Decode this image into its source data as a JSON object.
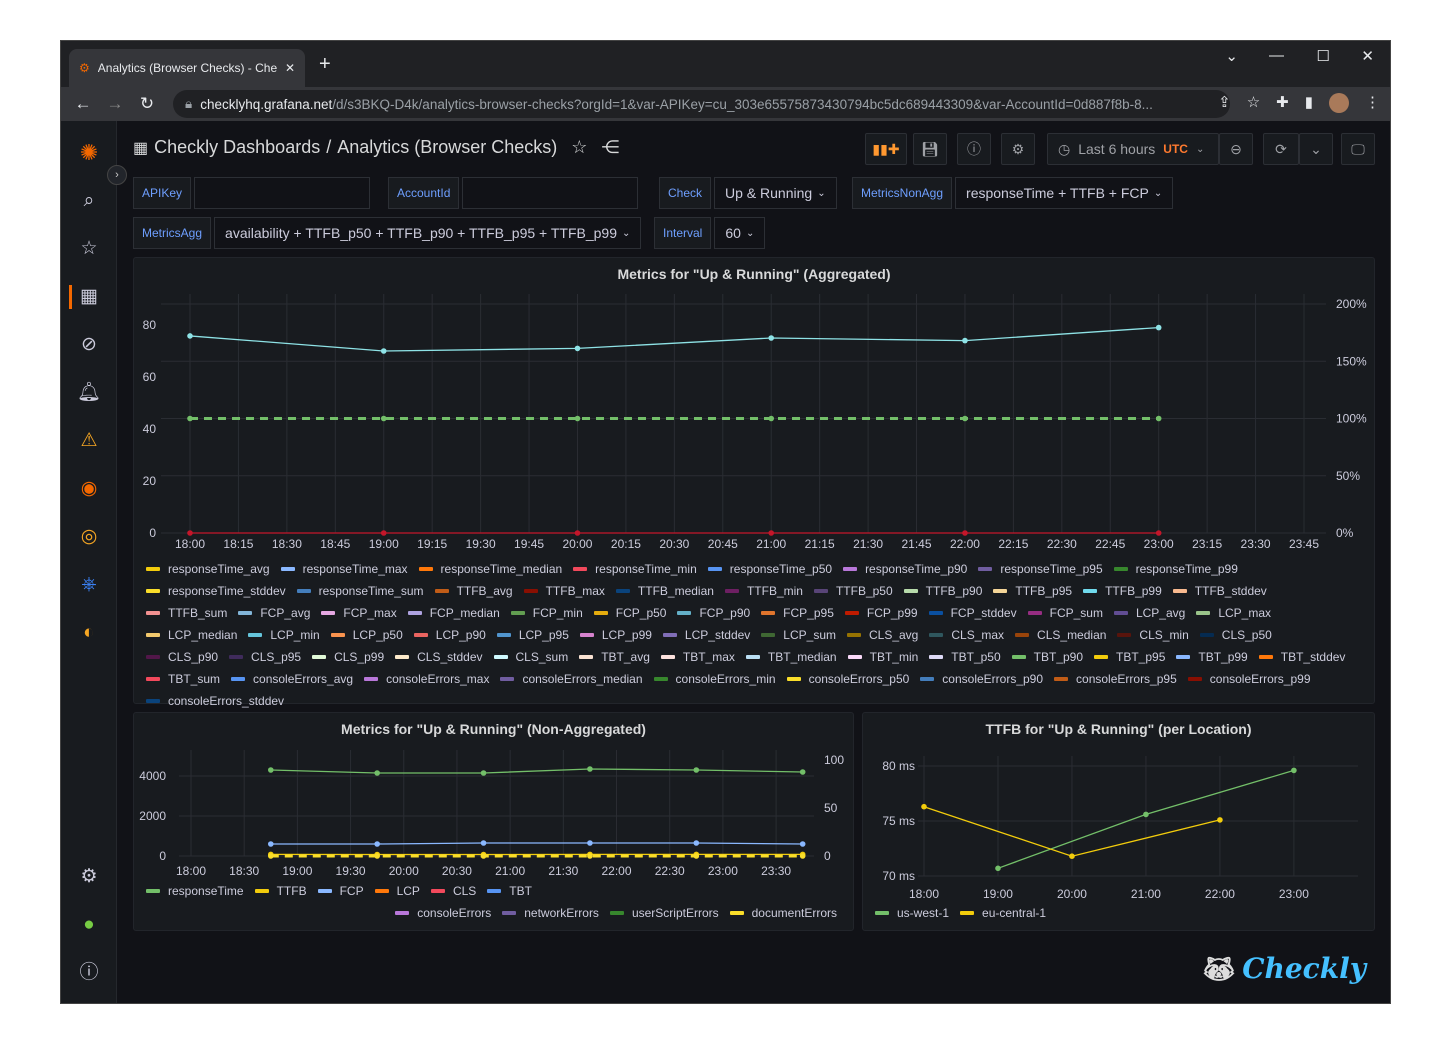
{
  "browser": {
    "tab_title": "Analytics (Browser Checks) - Checkly",
    "url_host": "checklyhq.grafana.net",
    "url_path": "/d/s3BKQ-D4k/analytics-browser-checks?orgId=1&var-APIKey=cu_303e65575873430794bc5dc689443309&var-AccountId=0d887f8b-8..."
  },
  "header": {
    "folder": "Checkly Dashboards",
    "separator": "/",
    "title": "Analytics (Browser Checks)",
    "time_range": "Last 6 hours",
    "timezone": "UTC"
  },
  "variables": [
    {
      "label": "APIKey",
      "value": ""
    },
    {
      "label": "AccountId",
      "value": ""
    },
    {
      "label": "Check",
      "value": "Up & Running"
    },
    {
      "label": "MetricsNonAgg",
      "value": "responseTime + TTFB + FCP"
    },
    {
      "label": "MetricsAgg",
      "value": "availability + TTFB_p50 + TTFB_p90 + TTFB_p95 + TTFB_p99"
    },
    {
      "label": "Interval",
      "value": "60"
    }
  ],
  "colors": {
    "accent": "#6e9fff",
    "utc": "#ff7a2f",
    "bg": "#111217",
    "panel": "#181b1f"
  },
  "panels": {
    "aggregated": {
      "title": "Metrics for \"Up & Running\" (Aggregated)"
    },
    "non_aggregated": {
      "title": "Metrics for \"Up & Running\" (Non-Aggregated)"
    },
    "ttfb_location": {
      "title": "TTFB for \"Up & Running\" (per Location)"
    }
  },
  "chart_data": [
    {
      "type": "line",
      "xlabels": [
        "18:00",
        "18:15",
        "18:30",
        "18:45",
        "19:00",
        "19:15",
        "19:30",
        "19:45",
        "20:00",
        "20:15",
        "20:30",
        "20:45",
        "21:00",
        "21:15",
        "21:30",
        "21:45",
        "22:00",
        "22:15",
        "22:30",
        "22:45",
        "23:00",
        "23:15",
        "23:30",
        "23:45"
      ],
      "yticks_left": [
        "0",
        "20",
        "40",
        "60",
        "80"
      ],
      "yticks_right": [
        "0%",
        "50%",
        "100%",
        "150%",
        "200%"
      ],
      "ylim_left": [
        0,
        80
      ],
      "ylim_right": [
        0,
        200
      ],
      "grid": true,
      "legend": "bottom",
      "series": [
        {
          "color": "#8ee3e6",
          "axis": "left",
          "x": [
            "18:00",
            "19:00",
            "20:00",
            "21:00",
            "22:00",
            "23:00"
          ],
          "values": [
            75.8,
            70,
            71,
            75,
            74,
            79
          ]
        },
        {
          "color": "#73bf69",
          "axis": "right",
          "dashed": true,
          "x": [
            "18:00",
            "19:00",
            "20:00",
            "21:00",
            "22:00",
            "23:00"
          ],
          "values": [
            100,
            100,
            100,
            100,
            100,
            100
          ]
        },
        {
          "color": "#c4162a",
          "axis": "left",
          "x": [
            "18:00",
            "19:00",
            "20:00",
            "21:00",
            "22:00",
            "23:00"
          ],
          "values": [
            0,
            0,
            0,
            0,
            0,
            0
          ]
        }
      ],
      "legend_items": [
        [
          "responseTime_avg",
          "#F2CC0C"
        ],
        [
          "responseTime_max",
          "#8AB8FF"
        ],
        [
          "responseTime_median",
          "#FF780A"
        ],
        [
          "responseTime_min",
          "#F2495C"
        ],
        [
          "responseTime_p50",
          "#5794F2"
        ],
        [
          "responseTime_p90",
          "#B877D9"
        ],
        [
          "responseTime_p95",
          "#705DA0"
        ],
        [
          "responseTime_p99",
          "#37872D"
        ],
        [
          "responseTime_stddev",
          "#FADE2A"
        ],
        [
          "responseTime_sum",
          "#447EBC"
        ],
        [
          "TTFB_avg",
          "#C15C17"
        ],
        [
          "TTFB_max",
          "#890F02"
        ],
        [
          "TTFB_median",
          "#0A437C"
        ],
        [
          "TTFB_min",
          "#6D1F62"
        ],
        [
          "TTFB_p50",
          "#584477"
        ],
        [
          "TTFB_p90",
          "#B7DBAB"
        ],
        [
          "TTFB_p95",
          "#F4D598"
        ],
        [
          "TTFB_p99",
          "#70DBED"
        ],
        [
          "TTFB_stddev",
          "#F9BA8F"
        ],
        [
          "TTFB_sum",
          "#F29191"
        ],
        [
          "FCP_avg",
          "#82B5D8"
        ],
        [
          "FCP_max",
          "#E5A8E2"
        ],
        [
          "FCP_median",
          "#AEA2E0"
        ],
        [
          "FCP_min",
          "#629E51"
        ],
        [
          "FCP_p50",
          "#E5AC0E"
        ],
        [
          "FCP_p90",
          "#64B0C8"
        ],
        [
          "FCP_p95",
          "#E0752D"
        ],
        [
          "FCP_p99",
          "#BF1B00"
        ],
        [
          "FCP_stddev",
          "#0A50A1"
        ],
        [
          "FCP_sum",
          "#962D82"
        ],
        [
          "LCP_avg",
          "#614D93"
        ],
        [
          "LCP_max",
          "#9AC48A"
        ],
        [
          "LCP_median",
          "#F2C96D"
        ],
        [
          "LCP_min",
          "#65C5DB"
        ],
        [
          "LCP_p50",
          "#F9934E"
        ],
        [
          "LCP_p90",
          "#EA6460"
        ],
        [
          "LCP_p95",
          "#5195CE"
        ],
        [
          "LCP_p99",
          "#D683CE"
        ],
        [
          "LCP_stddev",
          "#806EB7"
        ],
        [
          "LCP_sum",
          "#3F6833"
        ],
        [
          "CLS_avg",
          "#967302"
        ],
        [
          "CLS_max",
          "#2F575E"
        ],
        [
          "CLS_median",
          "#99440A"
        ],
        [
          "CLS_min",
          "#58140C"
        ],
        [
          "CLS_p50",
          "#052B51"
        ],
        [
          "CLS_p90",
          "#511749"
        ],
        [
          "CLS_p95",
          "#3F2B5B"
        ],
        [
          "CLS_p99",
          "#E0F9D7"
        ],
        [
          "CLS_stddev",
          "#FCEACA"
        ],
        [
          "CLS_sum",
          "#CFFAFF"
        ],
        [
          "TBT_avg",
          "#F9E2D2"
        ],
        [
          "TBT_max",
          "#FCE2DE"
        ],
        [
          "TBT_median",
          "#BADFF4"
        ],
        [
          "TBT_min",
          "#F9D9F9"
        ],
        [
          "TBT_p50",
          "#DEDAF7"
        ],
        [
          "TBT_p90",
          "#73BF69"
        ],
        [
          "TBT_p95",
          "#F2CC0C"
        ],
        [
          "TBT_p99",
          "#8AB8FF"
        ],
        [
          "TBT_stddev",
          "#FF780A"
        ],
        [
          "TBT_sum",
          "#F2495C"
        ],
        [
          "consoleErrors_avg",
          "#5794F2"
        ],
        [
          "consoleErrors_max",
          "#B877D9"
        ],
        [
          "consoleErrors_median",
          "#705DA0"
        ],
        [
          "consoleErrors_min",
          "#37872D"
        ],
        [
          "consoleErrors_p50",
          "#FADE2A"
        ],
        [
          "consoleErrors_p90",
          "#447EBC"
        ],
        [
          "consoleErrors_p95",
          "#C15C17"
        ],
        [
          "consoleErrors_p99",
          "#890F02"
        ],
        [
          "consoleErrors_stddev",
          "#0A437C"
        ]
      ]
    },
    {
      "type": "line",
      "xlabels": [
        "18:00",
        "18:30",
        "19:00",
        "19:30",
        "20:00",
        "20:30",
        "21:00",
        "21:30",
        "22:00",
        "22:30",
        "23:00",
        "23:30"
      ],
      "yticks_left": [
        "0",
        "2000",
        "4000"
      ],
      "yticks_right": [
        "0",
        "50",
        "100"
      ],
      "ylim_left": [
        0,
        4000
      ],
      "ylim_right": [
        0,
        100
      ],
      "grid": true,
      "legend": "bottom",
      "series": [
        {
          "name": "responseTime",
          "color": "#73BF69",
          "axis": "left",
          "x": [
            "18:45",
            "19:45",
            "20:45",
            "21:45",
            "22:45",
            "23:45"
          ],
          "values": [
            4300,
            4150,
            4150,
            4350,
            4300,
            4200
          ]
        },
        {
          "name": "FCP",
          "color": "#8AB8FF",
          "axis": "left",
          "x": [
            "18:45",
            "19:45",
            "20:45",
            "21:45",
            "22:45",
            "23:45"
          ],
          "values": [
            600,
            600,
            650,
            650,
            650,
            600
          ]
        },
        {
          "name": "TTFB",
          "color": "#F2CC0C",
          "axis": "left",
          "x": [
            "18:45",
            "19:45",
            "20:45",
            "21:45",
            "22:45",
            "23:45"
          ],
          "values": [
            80,
            75,
            75,
            80,
            80,
            80
          ]
        },
        {
          "name": "documentErrors",
          "color": "#FADE2A",
          "axis": "right",
          "dashed": true,
          "x": [
            "18:45",
            "19:45",
            "20:45",
            "21:45",
            "22:45",
            "23:45"
          ],
          "values": [
            0,
            0,
            0,
            0,
            0,
            0
          ]
        }
      ],
      "legend_items": [
        [
          "responseTime",
          "#73BF69"
        ],
        [
          "TTFB",
          "#F2CC0C"
        ],
        [
          "FCP",
          "#8AB8FF"
        ],
        [
          "LCP",
          "#FF780A"
        ],
        [
          "CLS",
          "#F2495C"
        ],
        [
          "TBT",
          "#5794F2"
        ]
      ],
      "legend_items_right": [
        [
          "consoleErrors",
          "#B877D9"
        ],
        [
          "networkErrors",
          "#705DA0"
        ],
        [
          "userScriptErrors",
          "#37872D"
        ],
        [
          "documentErrors",
          "#FADE2A"
        ]
      ]
    },
    {
      "type": "line",
      "xlabels": [
        "18:00",
        "19:00",
        "20:00",
        "21:00",
        "22:00",
        "23:00"
      ],
      "yticks_left": [
        "70 ms",
        "75 ms",
        "80 ms"
      ],
      "ylim_left": [
        70,
        80
      ],
      "grid": true,
      "legend": "bottom",
      "series": [
        {
          "name": "us-west-1",
          "color": "#73BF69",
          "axis": "left",
          "x": [
            "19:00",
            "21:00",
            "23:00"
          ],
          "values": [
            70.7,
            75.6,
            79.6
          ]
        },
        {
          "name": "eu-central-1",
          "color": "#F2CC0C",
          "axis": "left",
          "x": [
            "18:00",
            "20:00",
            "22:00"
          ],
          "values": [
            76.3,
            71.8,
            75.1
          ]
        }
      ],
      "legend_items": [
        [
          "us-west-1",
          "#73BF69"
        ],
        [
          "eu-central-1",
          "#F2CC0C"
        ]
      ]
    }
  ],
  "brand": "Checkly"
}
